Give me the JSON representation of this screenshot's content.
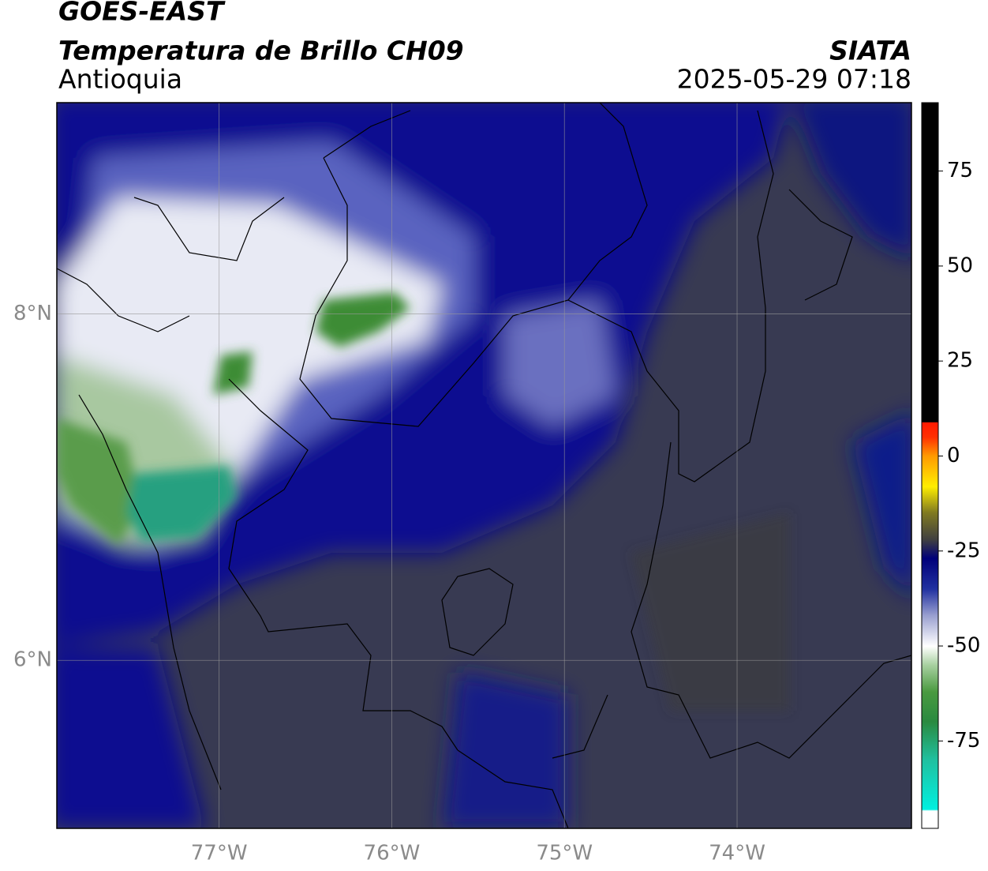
{
  "header": {
    "title": "GOES-EAST",
    "subtitle": "Temperatura de Brillo CH09",
    "region": "Antioquia",
    "source": "SIATA",
    "datetime": "2025-05-29 07:18"
  },
  "map": {
    "lonlim": [
      -77.94,
      -72.99
    ],
    "latlim": [
      5.03,
      9.22
    ],
    "lat_ticks": [
      {
        "value": 8,
        "label": "8°N"
      },
      {
        "value": 6,
        "label": "6°N"
      }
    ],
    "lon_ticks": [
      {
        "value": -77,
        "label": "77°W"
      },
      {
        "value": -76,
        "label": "76°W"
      },
      {
        "value": -75,
        "label": "75°W"
      },
      {
        "value": -74,
        "label": "74°W"
      }
    ]
  },
  "colorbar": {
    "lim": [
      -98,
      93
    ],
    "ticks": [
      -75,
      -50,
      -25,
      0,
      25,
      50,
      75
    ]
  }
}
